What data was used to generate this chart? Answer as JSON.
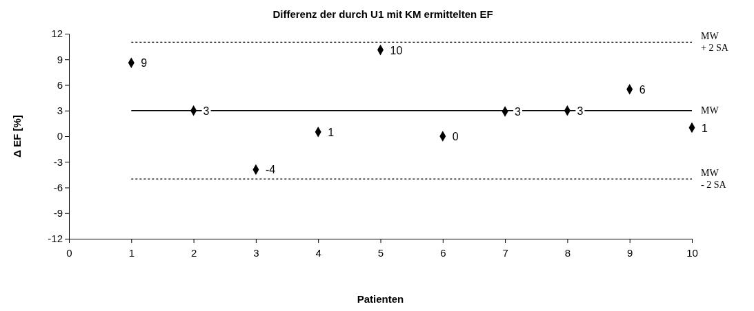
{
  "chart_data": {
    "type": "scatter",
    "title": "Differenz der durch  U1 mit KM ermittelten EF",
    "xlabel": "Patienten",
    "ylabel": "Δ EF [%]",
    "x": [
      1,
      2,
      3,
      4,
      5,
      6,
      7,
      8,
      9,
      10
    ],
    "series": [
      {
        "color": "#000000",
        "values": [
          8.6,
          3.0,
          -3.9,
          0.5,
          10.1,
          0.0,
          2.9,
          3.0,
          5.5,
          1.0
        ],
        "value_labels": [
          "9",
          "3",
          "-4",
          "1",
          "10",
          "0",
          "3",
          "3",
          "6",
          "1"
        ]
      }
    ],
    "xlim": [
      0,
      10
    ],
    "xticks": [
      0,
      1,
      2,
      3,
      4,
      5,
      6,
      7,
      8,
      9,
      10
    ],
    "ylim": [
      -12,
      12
    ],
    "yticks": [
      -12,
      -9,
      -6,
      -3,
      0,
      3,
      6,
      9,
      12
    ],
    "marker": "diamond",
    "grid": false,
    "ref_lines": [
      {
        "axis": "y",
        "value": 11,
        "label": "MW\n+ 2 SA",
        "line_style": "dotted",
        "color": "#000000"
      },
      {
        "axis": "y",
        "value": 3,
        "label": "MW",
        "line_style": "solid",
        "color": "#000000"
      },
      {
        "axis": "y",
        "value": -5,
        "label": "MW\n- 2 SA",
        "line_style": "dotted",
        "color": "#000000"
      }
    ]
  }
}
